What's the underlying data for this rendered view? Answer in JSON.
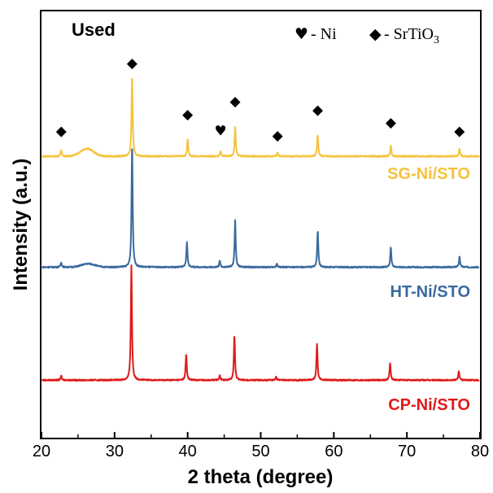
{
  "chart_data": {
    "type": "line",
    "title": "",
    "panel_label": "Used",
    "xlabel": "2 theta (degree)",
    "ylabel": "Intensity (a.u.)",
    "xlim": [
      20,
      80
    ],
    "ylim": [
      0,
      1
    ],
    "xticks": [
      20,
      30,
      40,
      50,
      60,
      70,
      80
    ],
    "yticks_shown": false,
    "legend": {
      "placement": "top-right",
      "entries": [
        {
          "symbol": "♥",
          "separator": " - ",
          "label": "Ni",
          "sub": ""
        },
        {
          "symbol": "◆",
          "separator": " - ",
          "label": "SrTiO",
          "sub": "3"
        }
      ]
    },
    "series": [
      {
        "name": "SG-Ni/STO",
        "color": "#f5c33b",
        "baseline": 0.66,
        "broad": [
          {
            "x": 26.2,
            "h": 0.018,
            "w": 0.9
          }
        ],
        "peaks": [
          {
            "x": 22.7,
            "h": 0.015
          },
          {
            "x": 32.4,
            "h": 0.19
          },
          {
            "x": 40.0,
            "h": 0.04
          },
          {
            "x": 44.5,
            "h": 0.012
          },
          {
            "x": 46.5,
            "h": 0.07
          },
          {
            "x": 52.3,
            "h": 0.008
          },
          {
            "x": 57.8,
            "h": 0.05
          },
          {
            "x": 67.8,
            "h": 0.025
          },
          {
            "x": 77.2,
            "h": 0.018
          }
        ],
        "markers": [
          {
            "x": 22.7,
            "y": 0.72,
            "phase": "SrTiO3"
          },
          {
            "x": 32.4,
            "y": 0.88,
            "phase": "SrTiO3"
          },
          {
            "x": 40.0,
            "y": 0.76,
            "phase": "SrTiO3"
          },
          {
            "x": 44.5,
            "y": 0.72,
            "phase": "Ni"
          },
          {
            "x": 46.5,
            "y": 0.79,
            "phase": "SrTiO3"
          },
          {
            "x": 52.3,
            "y": 0.71,
            "phase": "SrTiO3"
          },
          {
            "x": 57.8,
            "y": 0.77,
            "phase": "SrTiO3"
          },
          {
            "x": 67.8,
            "y": 0.74,
            "phase": "SrTiO3"
          },
          {
            "x": 77.2,
            "y": 0.72,
            "phase": "SrTiO3"
          }
        ]
      },
      {
        "name": "HT-Ni/STO",
        "color": "#3a6a9e",
        "baseline": 0.4,
        "broad": [
          {
            "x": 26.4,
            "h": 0.008,
            "w": 0.9
          }
        ],
        "peaks": [
          {
            "x": 22.7,
            "h": 0.012
          },
          {
            "x": 32.4,
            "h": 0.29
          },
          {
            "x": 39.9,
            "h": 0.06
          },
          {
            "x": 44.4,
            "h": 0.015
          },
          {
            "x": 46.5,
            "h": 0.11
          },
          {
            "x": 52.2,
            "h": 0.008
          },
          {
            "x": 57.8,
            "h": 0.087
          },
          {
            "x": 67.8,
            "h": 0.047
          },
          {
            "x": 77.2,
            "h": 0.025
          }
        ],
        "markers": []
      },
      {
        "name": "CP-Ni/STO",
        "color": "#e01a1a",
        "baseline": 0.135,
        "broad": [],
        "peaks": [
          {
            "x": 22.7,
            "h": 0.01
          },
          {
            "x": 32.3,
            "h": 0.27
          },
          {
            "x": 39.8,
            "h": 0.061
          },
          {
            "x": 44.4,
            "h": 0.012
          },
          {
            "x": 46.4,
            "h": 0.105
          },
          {
            "x": 52.1,
            "h": 0.008
          },
          {
            "x": 57.7,
            "h": 0.085
          },
          {
            "x": 67.7,
            "h": 0.041
          },
          {
            "x": 77.1,
            "h": 0.022
          }
        ],
        "markers": []
      }
    ]
  }
}
